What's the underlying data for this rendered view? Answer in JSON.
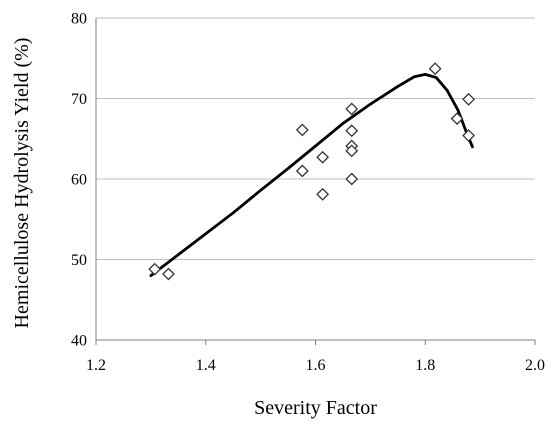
{
  "chart_data": {
    "type": "scatter",
    "title": "",
    "xlabel": "Severity Factor",
    "ylabel": "Hemicellulose Hydrolysis Yield (%)",
    "xlim": [
      1.2,
      2.0
    ],
    "ylim": [
      40,
      80
    ],
    "x_ticks": [
      "1.2",
      "1.4",
      "1.6",
      "1.8",
      "2.0"
    ],
    "y_ticks": [
      "40",
      "50",
      "60",
      "70",
      "80"
    ],
    "grid": "horizontal",
    "legend": "none",
    "series": [
      {
        "kind": "points",
        "marker": "open-diamond",
        "color": "#333333",
        "points": [
          {
            "x": 1.307,
            "y": 48.8
          },
          {
            "x": 1.332,
            "y": 48.2
          },
          {
            "x": 1.576,
            "y": 66.1
          },
          {
            "x": 1.576,
            "y": 61.0
          },
          {
            "x": 1.613,
            "y": 62.7
          },
          {
            "x": 1.613,
            "y": 58.1
          },
          {
            "x": 1.666,
            "y": 68.7
          },
          {
            "x": 1.666,
            "y": 66.0
          },
          {
            "x": 1.666,
            "y": 64.1
          },
          {
            "x": 1.666,
            "y": 63.5
          },
          {
            "x": 1.666,
            "y": 60.0
          },
          {
            "x": 1.818,
            "y": 73.7
          },
          {
            "x": 1.858,
            "y": 67.5
          },
          {
            "x": 1.879,
            "y": 69.9
          },
          {
            "x": 1.879,
            "y": 65.4
          }
        ]
      },
      {
        "kind": "trend-line",
        "color": "#000000",
        "points": [
          {
            "x": 1.3,
            "y": 48.0
          },
          {
            "x": 1.35,
            "y": 50.6
          },
          {
            "x": 1.4,
            "y": 53.2
          },
          {
            "x": 1.45,
            "y": 55.8
          },
          {
            "x": 1.5,
            "y": 58.6
          },
          {
            "x": 1.55,
            "y": 61.3
          },
          {
            "x": 1.6,
            "y": 64.1
          },
          {
            "x": 1.65,
            "y": 66.9
          },
          {
            "x": 1.7,
            "y": 69.3
          },
          {
            "x": 1.75,
            "y": 71.5
          },
          {
            "x": 1.78,
            "y": 72.7
          },
          {
            "x": 1.8,
            "y": 73.0
          },
          {
            "x": 1.82,
            "y": 72.6
          },
          {
            "x": 1.84,
            "y": 71.0
          },
          {
            "x": 1.86,
            "y": 68.5
          },
          {
            "x": 1.875,
            "y": 65.8
          },
          {
            "x": 1.886,
            "y": 64.0
          }
        ]
      }
    ]
  }
}
